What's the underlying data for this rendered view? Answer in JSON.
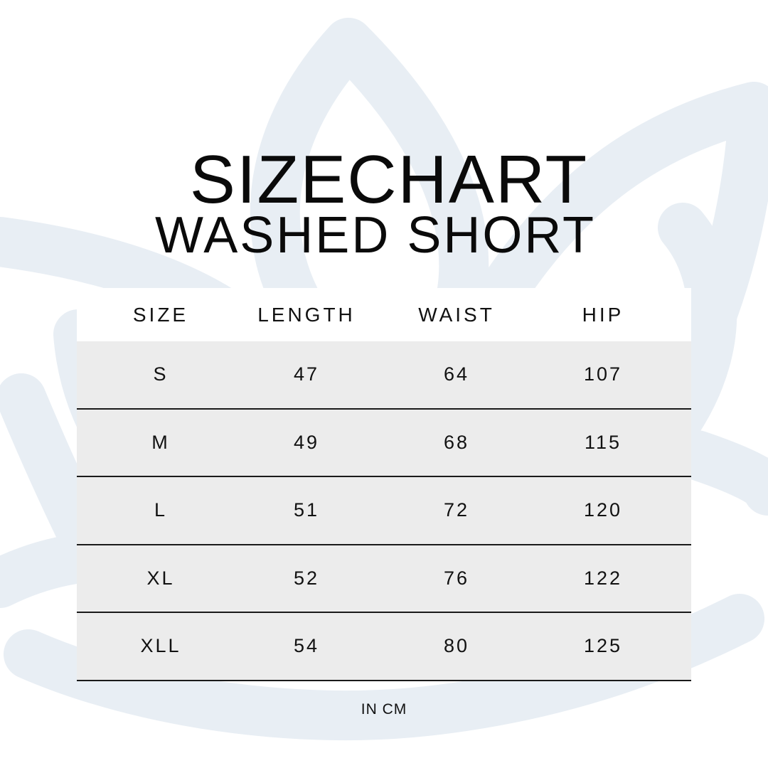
{
  "title": "SIZECHART",
  "subtitle": "WASHED SHORT",
  "background_color": "#ffffff",
  "watermark_color": "#e8eef4",
  "row_color": "#ececec",
  "table": {
    "headers": [
      "SIZE",
      "LENGTH",
      "WAIST",
      "HIP"
    ],
    "rows": [
      [
        "S",
        "47",
        "64",
        "107"
      ],
      [
        "M",
        "49",
        "68",
        "115"
      ],
      [
        "L",
        "51",
        "72",
        "120"
      ],
      [
        "XL",
        "52",
        "76",
        "122"
      ],
      [
        "XLL",
        "54",
        "80",
        "125"
      ]
    ]
  },
  "unit_note": "IN CM"
}
